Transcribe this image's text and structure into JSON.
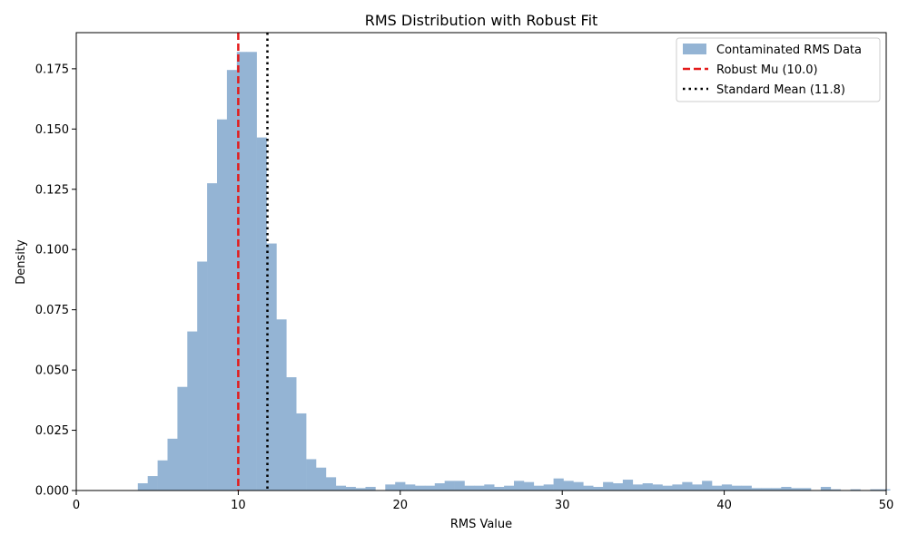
{
  "chart_data": {
    "type": "bar",
    "title": "RMS Distribution with Robust Fit",
    "xlabel": "RMS Value",
    "ylabel": "Density",
    "xlim": [
      0,
      50
    ],
    "ylim": [
      0,
      0.19
    ],
    "xticks": [
      0,
      10,
      20,
      30,
      40,
      50
    ],
    "yticks": [
      0.0,
      0.025,
      0.05,
      0.075,
      0.1,
      0.125,
      0.15,
      0.175
    ],
    "xtick_labels": [
      "0",
      "10",
      "20",
      "30",
      "40",
      "50"
    ],
    "ytick_labels": [
      "0.000",
      "0.025",
      "0.050",
      "0.075",
      "0.100",
      "0.125",
      "0.150",
      "0.175"
    ],
    "grid": false,
    "legend_position": "top-right",
    "histogram": {
      "name": "Contaminated RMS Data",
      "color": "#94b4d4",
      "bin_start": 3.8,
      "bin_width": 0.611,
      "values": [
        0.003,
        0.006,
        0.0125,
        0.0215,
        0.043,
        0.066,
        0.095,
        0.1275,
        0.154,
        0.1745,
        0.182,
        0.182,
        0.1465,
        0.1025,
        0.071,
        0.047,
        0.032,
        0.013,
        0.0095,
        0.0055,
        0.002,
        0.0015,
        0.001,
        0.0015,
        0.0,
        0.0025,
        0.0035,
        0.0025,
        0.002,
        0.002,
        0.003,
        0.004,
        0.004,
        0.002,
        0.002,
        0.0025,
        0.0015,
        0.002,
        0.004,
        0.0035,
        0.002,
        0.0025,
        0.005,
        0.004,
        0.0035,
        0.002,
        0.0015,
        0.0035,
        0.003,
        0.0045,
        0.0025,
        0.003,
        0.0025,
        0.002,
        0.0025,
        0.0035,
        0.0025,
        0.004,
        0.002,
        0.0025,
        0.002,
        0.002,
        0.001,
        0.001,
        0.001,
        0.0015,
        0.001,
        0.001,
        0.0,
        0.0015,
        0.0005,
        0.0,
        0.0005,
        0.0,
        0.0005,
        0.0005
      ]
    },
    "vlines": [
      {
        "name": "Robust Mu (10.0)",
        "x": 10.0,
        "color": "#e41a1a",
        "style": "dashed"
      },
      {
        "name": "Standard Mean (11.8)",
        "x": 11.8,
        "color": "#000000",
        "style": "dotted"
      }
    ]
  }
}
